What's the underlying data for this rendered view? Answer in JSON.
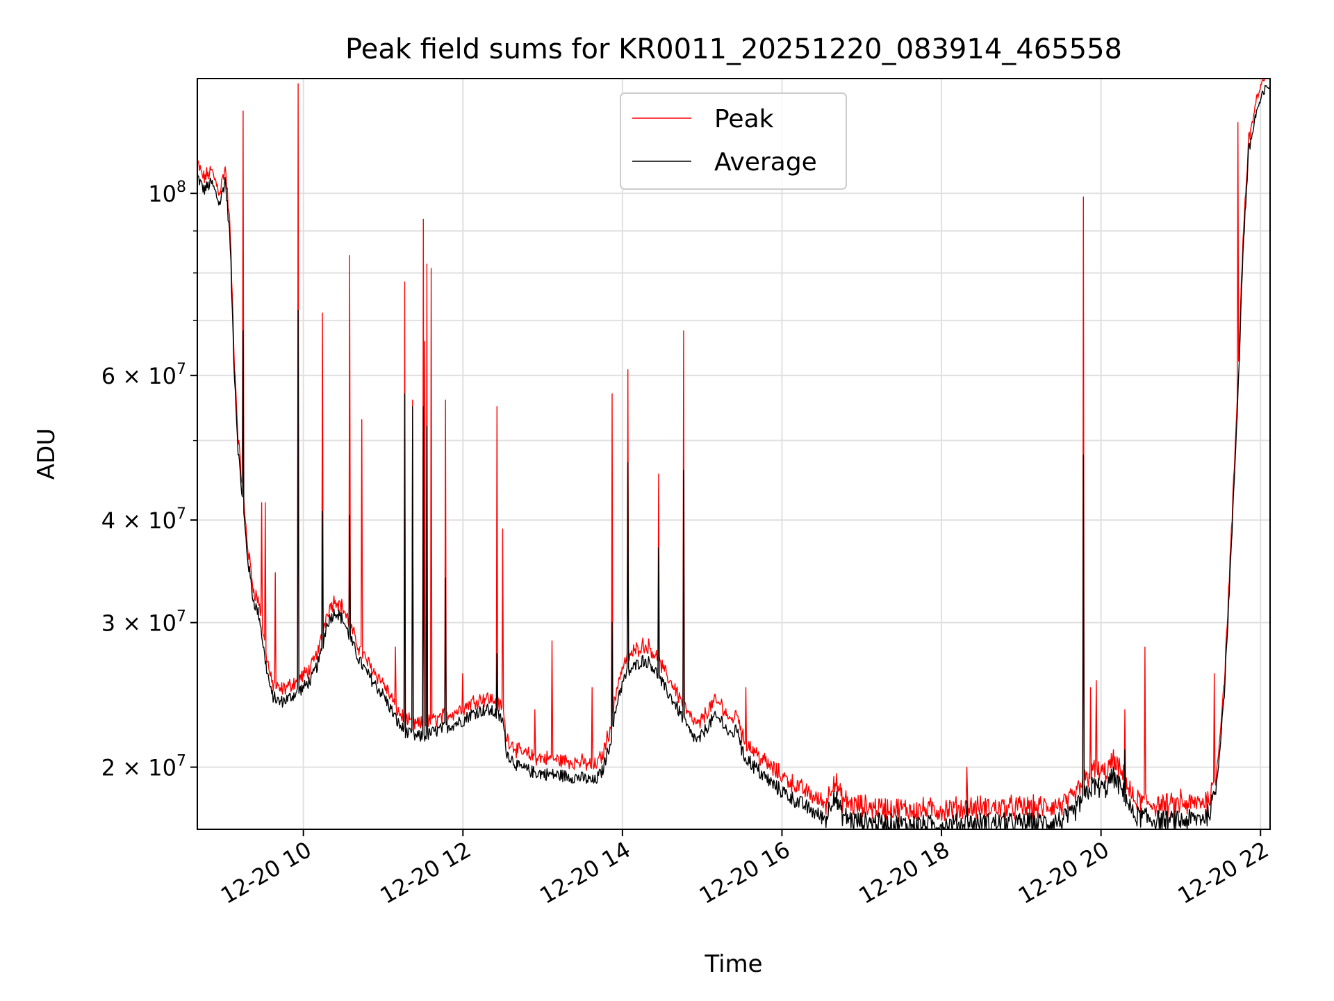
{
  "chart_data": {
    "type": "line",
    "title": "Peak field sums for KR0011_20251220_083914_465558",
    "xlabel": "Time",
    "ylabel": "ADU",
    "y_scale": "log",
    "ylim": [
      16800000,
      138000000
    ],
    "xlim_hours": [
      8.67,
      22.12
    ],
    "x_ticks": [
      {
        "label": "12-20 10",
        "hour": 10
      },
      {
        "label": "12-20 12",
        "hour": 12
      },
      {
        "label": "12-20 14",
        "hour": 14
      },
      {
        "label": "12-20 16",
        "hour": 16
      },
      {
        "label": "12-20 18",
        "hour": 18
      },
      {
        "label": "12-20 20",
        "hour": 20
      },
      {
        "label": "12-20 22",
        "hour": 22
      }
    ],
    "y_ticks": [
      {
        "mantissa": "2",
        "exp": "7",
        "value": 20000000
      },
      {
        "mantissa": "3",
        "exp": "7",
        "value": 30000000
      },
      {
        "mantissa": "4",
        "exp": "7",
        "value": 40000000
      },
      {
        "mantissa": "6",
        "exp": "7",
        "value": 60000000
      },
      {
        "mantissa": "",
        "exp": "8",
        "value": 100000000
      }
    ],
    "y_minor_ticks": [
      50000000,
      70000000,
      80000000,
      90000000
    ],
    "grid": true,
    "legend_position": "top-center",
    "series": [
      {
        "name": "Average",
        "color": "#000000",
        "points": [
          [
            8.67,
            105000000
          ],
          [
            8.75,
            101000000
          ],
          [
            8.85,
            103000000
          ],
          [
            8.95,
            97000000
          ],
          [
            9.02,
            104000000
          ],
          [
            9.08,
            88000000
          ],
          [
            9.13,
            62000000
          ],
          [
            9.18,
            49000000
          ],
          [
            9.23,
            43000000
          ],
          [
            9.3,
            36000000
          ],
          [
            9.37,
            32000000
          ],
          [
            9.45,
            30500000
          ],
          [
            9.52,
            27000000
          ],
          [
            9.6,
            24500000
          ],
          [
            9.7,
            24000000
          ],
          [
            9.8,
            24200000
          ],
          [
            9.9,
            24600000
          ],
          [
            10.0,
            25000000
          ],
          [
            10.1,
            25600000
          ],
          [
            10.2,
            27000000
          ],
          [
            10.3,
            30000000
          ],
          [
            10.4,
            31000000
          ],
          [
            10.5,
            30200000
          ],
          [
            10.6,
            28500000
          ],
          [
            10.7,
            27000000
          ],
          [
            10.8,
            26000000
          ],
          [
            10.9,
            25200000
          ],
          [
            11.0,
            24500000
          ],
          [
            11.1,
            23500000
          ],
          [
            11.2,
            22500000
          ],
          [
            11.3,
            22000000
          ],
          [
            11.4,
            21800000
          ],
          [
            11.5,
            21800000
          ],
          [
            11.6,
            22000000
          ],
          [
            11.7,
            22200000
          ],
          [
            11.8,
            22400000
          ],
          [
            11.9,
            22600000
          ],
          [
            12.0,
            22800000
          ],
          [
            12.1,
            23200000
          ],
          [
            12.2,
            23400000
          ],
          [
            12.3,
            23500000
          ],
          [
            12.4,
            23300000
          ],
          [
            12.5,
            22800000
          ],
          [
            12.55,
            20800000
          ],
          [
            12.7,
            20000000
          ],
          [
            12.9,
            19700000
          ],
          [
            13.1,
            19600000
          ],
          [
            13.3,
            19500000
          ],
          [
            13.5,
            19400000
          ],
          [
            13.65,
            19200000
          ],
          [
            13.75,
            19800000
          ],
          [
            13.85,
            21500000
          ],
          [
            13.95,
            24500000
          ],
          [
            14.05,
            26000000
          ],
          [
            14.15,
            26500000
          ],
          [
            14.25,
            27000000
          ],
          [
            14.35,
            26800000
          ],
          [
            14.45,
            25800000
          ],
          [
            14.55,
            24800000
          ],
          [
            14.65,
            24000000
          ],
          [
            14.75,
            23000000
          ],
          [
            14.85,
            22000000
          ],
          [
            14.95,
            21500000
          ],
          [
            15.05,
            22300000
          ],
          [
            15.15,
            23000000
          ],
          [
            15.25,
            22800000
          ],
          [
            15.35,
            21800000
          ],
          [
            15.45,
            22300000
          ],
          [
            15.5,
            20800000
          ],
          [
            15.7,
            19800000
          ],
          [
            15.9,
            19000000
          ],
          [
            16.1,
            18400000
          ],
          [
            16.3,
            17900000
          ],
          [
            16.45,
            17500000
          ],
          [
            16.55,
            17300000
          ],
          [
            16.65,
            18600000
          ],
          [
            16.75,
            17500000
          ],
          [
            16.9,
            17200000
          ],
          [
            17.2,
            17100000
          ],
          [
            17.6,
            17000000
          ],
          [
            18.0,
            17000000
          ],
          [
            18.4,
            17100000
          ],
          [
            18.8,
            17100000
          ],
          [
            19.2,
            17100000
          ],
          [
            19.5,
            17200000
          ],
          [
            19.65,
            17500000
          ],
          [
            19.75,
            18200000
          ],
          [
            19.9,
            19000000
          ],
          [
            20.05,
            18800000
          ],
          [
            20.15,
            19500000
          ],
          [
            20.3,
            18500000
          ],
          [
            20.4,
            17500000
          ],
          [
            20.6,
            17300000
          ],
          [
            20.8,
            17200000
          ],
          [
            21.0,
            17200000
          ],
          [
            21.2,
            17300000
          ],
          [
            21.35,
            17500000
          ],
          [
            21.45,
            19000000
          ],
          [
            21.55,
            25000000
          ],
          [
            21.65,
            40000000
          ],
          [
            21.72,
            58000000
          ],
          [
            21.78,
            85000000
          ],
          [
            21.85,
            112000000
          ],
          [
            21.95,
            126000000
          ],
          [
            22.05,
            133000000
          ],
          [
            22.12,
            136000000
          ]
        ],
        "spikes": [
          [
            9.24,
            68000000
          ],
          [
            9.93,
            72000000
          ],
          [
            10.24,
            41000000
          ],
          [
            10.58,
            40500000
          ],
          [
            11.27,
            57000000
          ],
          [
            11.37,
            55000000
          ],
          [
            11.5,
            55000000
          ],
          [
            11.55,
            52000000
          ],
          [
            11.78,
            34000000
          ],
          [
            12.43,
            27500000
          ],
          [
            13.87,
            30000000
          ],
          [
            14.07,
            47000000
          ],
          [
            14.45,
            37000000
          ],
          [
            14.77,
            46000000
          ],
          [
            18.32,
            18200000
          ],
          [
            19.78,
            48000000
          ],
          [
            20.3,
            21000000
          ]
        ]
      },
      {
        "name": "Peak",
        "color": "#ff0000",
        "offset_factor": 1.025,
        "spikes": [
          [
            9.24,
            126000000
          ],
          [
            9.48,
            42000000
          ],
          [
            9.52,
            42000000
          ],
          [
            9.65,
            34500000
          ],
          [
            9.93,
            136000000
          ],
          [
            10.24,
            71500000
          ],
          [
            10.58,
            84000000
          ],
          [
            10.73,
            53000000
          ],
          [
            11.15,
            28000000
          ],
          [
            11.27,
            78000000
          ],
          [
            11.37,
            56000000
          ],
          [
            11.5,
            93000000
          ],
          [
            11.52,
            66000000
          ],
          [
            11.55,
            82000000
          ],
          [
            11.6,
            81000000
          ],
          [
            11.78,
            56000000
          ],
          [
            12.0,
            26000000
          ],
          [
            12.43,
            55000000
          ],
          [
            12.5,
            39000000
          ],
          [
            12.9,
            23500000
          ],
          [
            13.12,
            28500000
          ],
          [
            13.62,
            25000000
          ],
          [
            13.87,
            57000000
          ],
          [
            14.07,
            61000000
          ],
          [
            14.45,
            45500000
          ],
          [
            14.77,
            68000000
          ],
          [
            15.55,
            25000000
          ],
          [
            18.32,
            20000000
          ],
          [
            19.78,
            99000000
          ],
          [
            19.87,
            25000000
          ],
          [
            19.94,
            25500000
          ],
          [
            20.3,
            23500000
          ],
          [
            20.55,
            28000000
          ],
          [
            21.0,
            18800000
          ],
          [
            21.42,
            26000000
          ],
          [
            21.72,
            122000000
          ]
        ]
      }
    ]
  }
}
